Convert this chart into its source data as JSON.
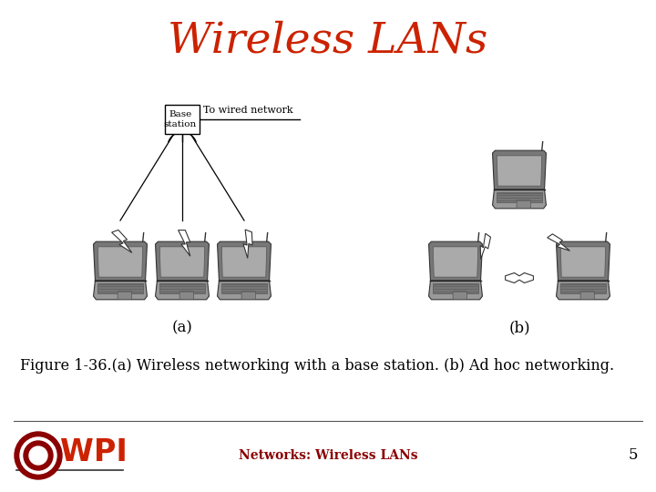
{
  "title": "Wireless LANs",
  "title_color": "#CC2200",
  "title_fontsize": 34,
  "bg_color": "#FFFFFF",
  "figure_caption": "Figure 1-36.(a) Wireless networking with a base station. (b) Ad hoc networking.",
  "caption_fontsize": 11.5,
  "footer_text": "Networks: Wireless LANs",
  "footer_color": "#8B0000",
  "footer_fontsize": 10,
  "page_number": "5",
  "label_a": "(a)",
  "label_b": "(b)",
  "base_station_label": "Base\nstation",
  "wired_network_label": "To wired network"
}
